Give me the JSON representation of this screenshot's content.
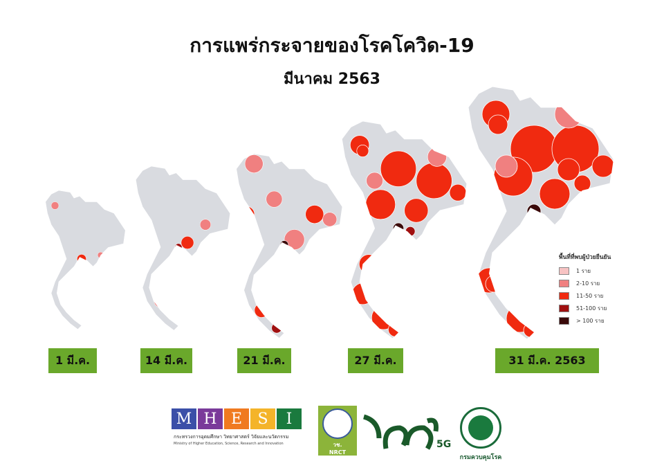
{
  "title": "การแพร่กระจายของโรคโควิด-19",
  "subtitle": "มีนาคม 2563",
  "dates": [
    "1 มี.ค.",
    "14 มี.ค.",
    "21 มี.ค.",
    "27 มี.ค.",
    "31 มี.ค. 2563"
  ],
  "legend": {
    "title": "พื้นที่ที่พบผู้ป่วยยืนยัน",
    "items": [
      {
        "label": "1 ราย",
        "color": "#f7c3c3"
      },
      {
        "label": "2-10 ราย",
        "color": "#f08080"
      },
      {
        "label": "11-50 ราย",
        "color": "#f02a10"
      },
      {
        "label": "51-100 ราย",
        "color": "#a01010"
      },
      {
        "label": "> 100 ราย",
        "color": "#3a0a0a"
      }
    ]
  },
  "colors": {
    "no_cases": "#d9dbe0",
    "date_badge": "#6aa82b"
  },
  "logos": {
    "mhesi_letters": [
      "M",
      "H",
      "E",
      "S",
      "I"
    ],
    "mhesi_th": "กระทรวงการอุดมศึกษา วิทยาศาสตร์ วิจัยและนวัตกรรม",
    "mhesi_en": "Ministry of Higher Education, Science, Research and Innovation",
    "nrct_th": "วช.",
    "nrct_en": "NRCT",
    "g5": "5G",
    "moph": "กรมควบคุมโรค"
  }
}
